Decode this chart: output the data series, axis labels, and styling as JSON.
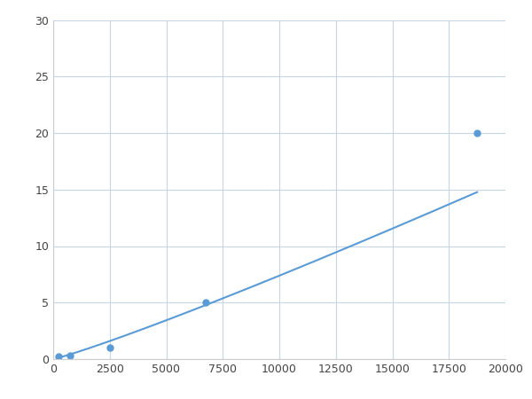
{
  "x": [
    250,
    750,
    2500,
    6750,
    18750
  ],
  "y": [
    0.2,
    0.3,
    1.0,
    5.0,
    20.0
  ],
  "line_color": "#5b9bd5",
  "marker_color": "#5b9bd5",
  "marker_size": 5,
  "line_width": 1.5,
  "xlim": [
    0,
    20000
  ],
  "ylim": [
    0,
    30
  ],
  "xticks": [
    0,
    2500,
    5000,
    7500,
    10000,
    12500,
    15000,
    17500,
    20000
  ],
  "yticks": [
    0,
    5,
    10,
    15,
    20,
    25,
    30
  ],
  "grid_color": "#c8d4e8",
  "background_color": "#ffffff",
  "figsize": [
    6.0,
    4.5
  ],
  "dpi": 100
}
